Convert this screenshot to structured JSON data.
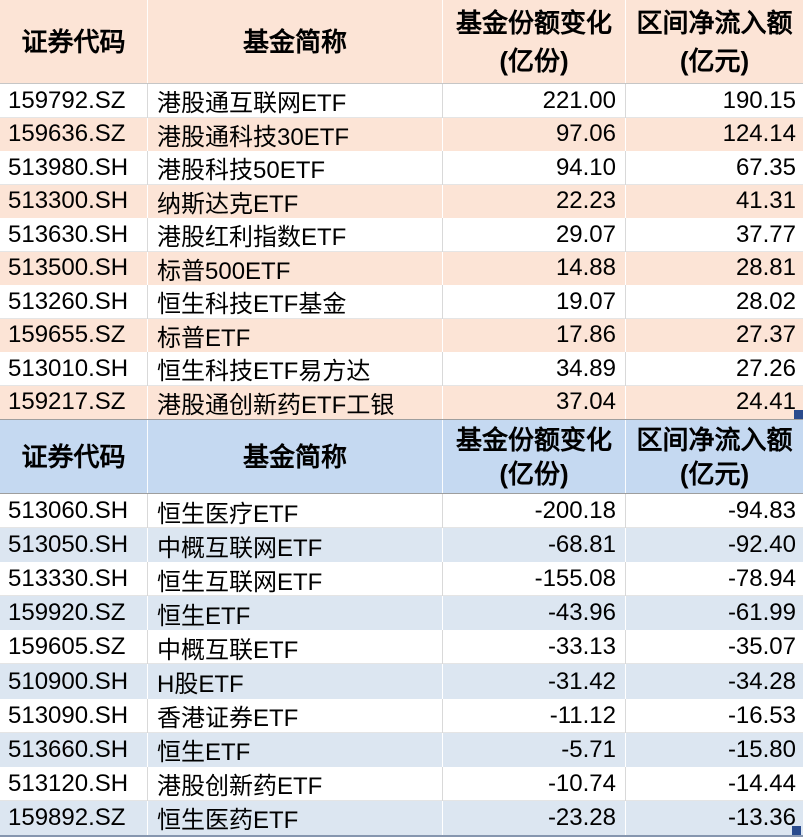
{
  "colors": {
    "positive_row_fill": "#FCE4D6",
    "negative_row_fill": "#DCE6F1",
    "negative_header_fill": "#C5D9F1",
    "grid_line": "#D9D9D9",
    "selection_handle": "#2A4B8D"
  },
  "columns": {
    "code": "证券代码",
    "name": "基金简称",
    "share_change_line1": "基金份额变化",
    "share_change_line2": "(亿份)",
    "net_inflow_line1": "区间净流入额",
    "net_inflow_line2": "(亿元)"
  },
  "tables": [
    {
      "name": "net-inflow-funds",
      "rows": [
        {
          "code": "159792.SZ",
          "name": "港股通互联网ETF",
          "share_change": "221.00",
          "net_inflow": "190.15"
        },
        {
          "code": "159636.SZ",
          "name": "港股通科技30ETF",
          "share_change": "97.06",
          "net_inflow": "124.14"
        },
        {
          "code": "513980.SH",
          "name": "港股科技50ETF",
          "share_change": "94.10",
          "net_inflow": "67.35"
        },
        {
          "code": "513300.SH",
          "name": "纳斯达克ETF",
          "share_change": "22.23",
          "net_inflow": "41.31"
        },
        {
          "code": "513630.SH",
          "name": "港股红利指数ETF",
          "share_change": "29.07",
          "net_inflow": "37.77"
        },
        {
          "code": "513500.SH",
          "name": "标普500ETF",
          "share_change": "14.88",
          "net_inflow": "28.81"
        },
        {
          "code": "513260.SH",
          "name": "恒生科技ETF基金",
          "share_change": "19.07",
          "net_inflow": "28.02"
        },
        {
          "code": "159655.SZ",
          "name": "标普ETF",
          "share_change": "17.86",
          "net_inflow": "27.37"
        },
        {
          "code": "513010.SH",
          "name": "恒生科技ETF易方达",
          "share_change": "34.89",
          "net_inflow": "27.26"
        },
        {
          "code": "159217.SZ",
          "name": "港股通创新药ETF工银",
          "share_change": "37.04",
          "net_inflow": "24.41"
        }
      ]
    },
    {
      "name": "net-outflow-funds",
      "rows": [
        {
          "code": "513060.SH",
          "name": "恒生医疗ETF",
          "share_change": "-200.18",
          "net_inflow": "-94.83"
        },
        {
          "code": "513050.SH",
          "name": "中概互联网ETF",
          "share_change": "-68.81",
          "net_inflow": "-92.40"
        },
        {
          "code": "513330.SH",
          "name": "恒生互联网ETF",
          "share_change": "-155.08",
          "net_inflow": "-78.94"
        },
        {
          "code": "159920.SZ",
          "name": "恒生ETF",
          "share_change": "-43.96",
          "net_inflow": "-61.99"
        },
        {
          "code": "159605.SZ",
          "name": "中概互联ETF",
          "share_change": "-33.13",
          "net_inflow": "-35.07"
        },
        {
          "code": "510900.SH",
          "name": "H股ETF",
          "share_change": "-31.42",
          "net_inflow": "-34.28"
        },
        {
          "code": "513090.SH",
          "name": "香港证券ETF",
          "share_change": "-11.12",
          "net_inflow": "-16.53"
        },
        {
          "code": "513660.SH",
          "name": "恒生ETF",
          "share_change": "-5.71",
          "net_inflow": "-15.80"
        },
        {
          "code": "513120.SH",
          "name": "港股创新药ETF",
          "share_change": "-10.74",
          "net_inflow": "-14.44"
        },
        {
          "code": "159892.SZ",
          "name": "恒生医药ETF",
          "share_change": "-23.28",
          "net_inflow": "-13.36"
        }
      ]
    }
  ]
}
